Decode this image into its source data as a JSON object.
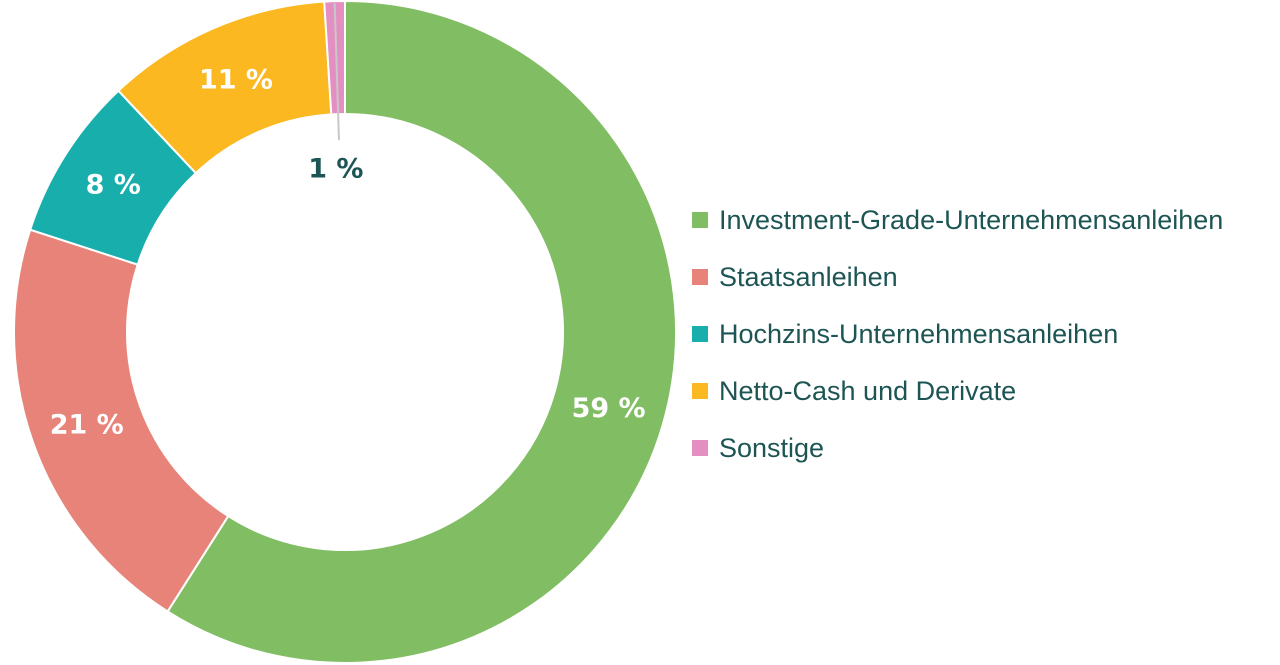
{
  "chart_data": {
    "type": "pie",
    "variant": "donut",
    "slices": [
      {
        "label": "Investment-Grade-Unternehmensanleihen",
        "value": 59,
        "value_label": "59 %",
        "color": "#80bd63"
      },
      {
        "label": "Staatsanleihen",
        "value": 21,
        "value_label": "21 %",
        "color": "#e8837a"
      },
      {
        "label": "Hochzins-Unternehmensanleihen",
        "value": 8,
        "value_label": "8 %",
        "color": "#18aeac"
      },
      {
        "label": "Netto-Cash und Derivate",
        "value": 11,
        "value_label": "11 %",
        "color": "#fbb821"
      },
      {
        "label": "Sonstige",
        "value": 1,
        "value_label": "1 %",
        "color": "#e48fc1"
      }
    ],
    "start_angle_deg": 0,
    "direction": "clockwise",
    "legend_position": "right",
    "label_colors": {
      "inside": "#ffffff",
      "outside": "#1d5554"
    },
    "legend_text_color": "#1d5554"
  }
}
